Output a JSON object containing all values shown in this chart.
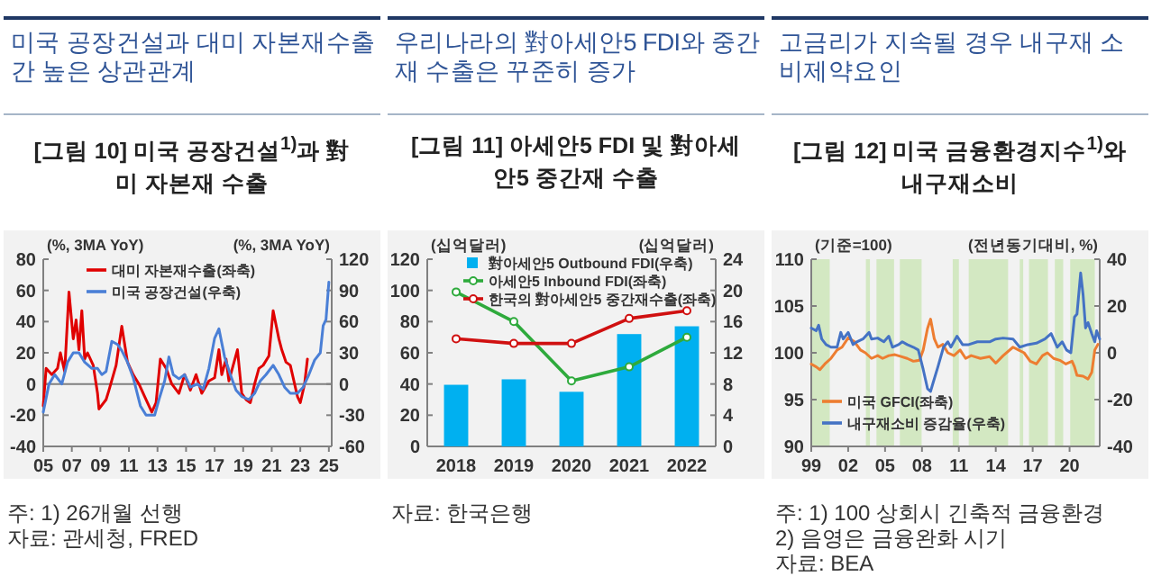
{
  "chart_data": [
    {
      "type": "line",
      "title": "미국 공장건설과 대미 자본재수출간 높은 상관관계",
      "subtitle": "[그림 10] 미국 공장건설$^{1)}$과 對미 자본재 수출",
      "ylabel": "(%, 3MA YoY)",
      "y2label": "(%, 3MA YoY)",
      "xlim": [
        2005,
        2025.2
      ],
      "xticks": [
        {
          "value": 2005,
          "label": "05"
        },
        {
          "value": 2007,
          "label": "07"
        },
        {
          "value": 2009,
          "label": "09"
        },
        {
          "value": 2011,
          "label": "11"
        },
        {
          "value": 2013,
          "label": "13"
        },
        {
          "value": 2015,
          "label": "15"
        },
        {
          "value": 2017,
          "label": "17"
        },
        {
          "value": 2019,
          "label": "19"
        },
        {
          "value": 2021,
          "label": "21"
        },
        {
          "value": 2023,
          "label": "23"
        },
        {
          "value": 2025,
          "label": "25"
        }
      ],
      "ylim": [
        -40,
        80
      ],
      "yticks": [
        -40,
        -20,
        0,
        20,
        40,
        60,
        80
      ],
      "y2lim": [
        -60,
        120
      ],
      "y2ticks": [
        -60,
        -30,
        0,
        30,
        60,
        90,
        120
      ],
      "ref_lines": [
        {
          "axis": "y",
          "value": 0,
          "color": "#7f7f7f"
        }
      ],
      "legend": "top left",
      "annotations": [
        "주: 1) 26개월 선행",
        "자료: 관세청, FRED"
      ],
      "series": [
        {
          "name": "대미 자본재수출(좌축)",
          "color": "#e00000",
          "x": [
            2005.0,
            2005.2,
            2005.6,
            2006.0,
            2006.2,
            2006.5,
            2006.8,
            2007.1,
            2007.3,
            2007.5,
            2007.7,
            2007.9,
            2008.1,
            2008.5,
            2008.8,
            2008.9,
            2009.4,
            2009.6,
            2010.1,
            2010.5,
            2010.9,
            2011.3,
            2011.7,
            2012.1,
            2012.6,
            2012.9,
            2013.2,
            2013.6,
            2014.0,
            2014.5,
            2014.9,
            2015.3,
            2015.7,
            2016.1,
            2016.6,
            2017.0,
            2017.3,
            2017.5,
            2017.8,
            2018.0,
            2018.3,
            2018.6,
            2018.9,
            2019.2,
            2019.5,
            2019.8,
            2020.1,
            2020.4,
            2020.8,
            2021.1,
            2021.5,
            2021.7,
            2022.0,
            2022.3,
            2022.8,
            2023.0,
            2023.3,
            2023.5
          ],
          "values": [
            -14,
            10,
            6,
            10,
            20,
            8,
            59,
            29,
            41,
            22,
            47,
            16,
            20,
            12,
            -6,
            -16,
            -10,
            -4,
            12,
            37,
            14,
            6,
            0,
            -8,
            -18,
            -12,
            16,
            10,
            0,
            -6,
            6,
            -4,
            6,
            -6,
            2,
            4,
            22,
            6,
            16,
            2,
            12,
            22,
            -6,
            -10,
            -12,
            0,
            10,
            12,
            18,
            47,
            29,
            22,
            14,
            12,
            -8,
            -12,
            0,
            16
          ]
        },
        {
          "name": "미국 공장건설(우축)",
          "color": "#4a7fd6",
          "axis": "y2",
          "x": [
            2005.0,
            2005.4,
            2005.8,
            2006.3,
            2006.7,
            2007.1,
            2007.5,
            2007.9,
            2008.4,
            2008.8,
            2009.1,
            2009.4,
            2009.8,
            2010.2,
            2010.5,
            2010.9,
            2011.3,
            2011.8,
            2012.2,
            2012.8,
            2013.1,
            2013.5,
            2013.8,
            2014.1,
            2014.5,
            2014.9,
            2015.3,
            2015.8,
            2016.2,
            2016.6,
            2017.0,
            2017.3,
            2017.7,
            2018.1,
            2018.5,
            2018.9,
            2019.4,
            2019.8,
            2020.2,
            2020.6,
            2021.1,
            2021.5,
            2021.9,
            2022.3,
            2022.8,
            2023.2,
            2023.6,
            2024.0,
            2024.4,
            2024.6,
            2024.8,
            2025.0
          ],
          "values": [
            -27,
            0,
            9,
            0,
            21,
            30,
            30,
            21,
            15,
            15,
            9,
            12,
            41,
            38,
            32,
            21,
            6,
            -21,
            -30,
            -30,
            -15,
            3,
            26,
            9,
            5,
            9,
            -3,
            0,
            -5,
            15,
            44,
            53,
            26,
            9,
            -6,
            -12,
            -15,
            -9,
            3,
            9,
            18,
            9,
            -3,
            -9,
            -9,
            -3,
            9,
            23,
            30,
            56,
            62,
            98
          ]
        }
      ]
    },
    {
      "type": "bar",
      "title": "우리나라의 對아세안5 FDI와 중간재 수출은 꾸준히 증가",
      "subtitle": "[그림 11] 아세안5 FDI 및 對아세안5 중간재 수출",
      "ylabel": "(십억달러)",
      "y2label": "(십억달러)",
      "categories": [
        "2018",
        "2019",
        "2020",
        "2021",
        "2022"
      ],
      "ylim": [
        0,
        120
      ],
      "yticks": [
        0,
        20,
        40,
        60,
        80,
        100,
        120
      ],
      "y2lim": [
        0,
        24
      ],
      "y2ticks": [
        0,
        4,
        8,
        12,
        16,
        20,
        24
      ],
      "legend": "top right",
      "annotations": [
        "자료: 한국은행"
      ],
      "series": [
        {
          "name": "對아세안5 Outbound FDI(우축)",
          "axis": "y2",
          "color": "#00b0f0",
          "values": [
            7.9,
            8.6,
            7.0,
            14.4,
            15.4
          ]
        },
        {
          "name": "아세안5 Inbound FDI(좌축)",
          "type": "line",
          "marker": "circle",
          "color": "#2eaa3c",
          "values": [
            99,
            80,
            42,
            51,
            70
          ]
        },
        {
          "name": "한국의 對아세안5 중간재수출(좌축)",
          "type": "line",
          "marker": "circle",
          "color": "#d01010",
          "values": [
            69,
            66,
            66,
            82,
            87
          ]
        }
      ]
    },
    {
      "type": "line",
      "title": "고금리가 지속될 경우 내구재 소비제약요인",
      "subtitle": "[그림 12] 미국 금융환경지수$^{1)}$와 내구재소비",
      "ylabel": "(기준=100)",
      "y2label": "(전년동기대비, %)",
      "xlim": [
        1999,
        2022.45
      ],
      "xticks": [
        {
          "value": 1999,
          "label": "99"
        },
        {
          "value": 2002,
          "label": "02"
        },
        {
          "value": 2005,
          "label": "05"
        },
        {
          "value": 2008,
          "label": "08"
        },
        {
          "value": 2011,
          "label": "11"
        },
        {
          "value": 2014,
          "label": "14"
        },
        {
          "value": 2017,
          "label": "17"
        },
        {
          "value": 2020,
          "label": "20"
        }
      ],
      "ylim": [
        90,
        110
      ],
      "yticks": [
        90,
        95,
        100,
        105,
        110
      ],
      "y2lim": [
        -40,
        40
      ],
      "y2ticks": [
        -40,
        -20,
        0,
        20,
        40
      ],
      "legend": "bottom left",
      "bands": [
        {
          "axis": "x",
          "from": 1999.0,
          "to": 2000.5,
          "color": "#d3e8c2"
        },
        {
          "axis": "x",
          "from": 2003.44,
          "to": 2003.77,
          "color": "#d3e8c2"
        },
        {
          "axis": "x",
          "from": 2004.3,
          "to": 2005.73,
          "color": "#d3e8c2"
        },
        {
          "axis": "x",
          "from": 2006.2,
          "to": 2007.97,
          "color": "#d3e8c2"
        },
        {
          "axis": "x",
          "from": 2010.5,
          "to": 2011.0,
          "color": "#d3e8c2"
        },
        {
          "axis": "x",
          "from": 2011.8,
          "to": 2015.0,
          "color": "#d3e8c2"
        },
        {
          "axis": "x",
          "from": 2015.95,
          "to": 2016.23,
          "color": "#d3e8c2"
        },
        {
          "axis": "x",
          "from": 2016.7,
          "to": 2018.24,
          "color": "#d3e8c2"
        },
        {
          "axis": "x",
          "from": 2018.8,
          "to": 2019.48,
          "color": "#d3e8c2"
        },
        {
          "axis": "x",
          "from": 2020.05,
          "to": 2022.05,
          "color": "#d3e8c2"
        }
      ],
      "annotations": [
        "주: 1) 100 상회시 긴축적 금융환경",
        "2) 음영은 금융완화 시기",
        "자료: BEA"
      ],
      "series": [
        {
          "name": "미국 GFCI(좌축)",
          "color": "#ed7d31",
          "x": [
            1999.0,
            1999.4,
            1999.7,
            2000.1,
            2000.6,
            2001.1,
            2001.5,
            2002.0,
            2002.5,
            2003.0,
            2003.4,
            2003.9,
            2004.4,
            2004.8,
            2005.3,
            2005.8,
            2006.3,
            2006.8,
            2007.3,
            2007.8,
            2008.1,
            2008.45,
            2008.7,
            2009.0,
            2009.3,
            2009.7,
            2010.1,
            2010.6,
            2011.1,
            2011.55,
            2012.0,
            2012.75,
            2013.5,
            2014.0,
            2014.6,
            2015.4,
            2015.85,
            2016.3,
            2016.8,
            2017.3,
            2017.8,
            2018.2,
            2018.7,
            2019.2,
            2019.7,
            2020.2,
            2020.4,
            2020.6,
            2021.1,
            2021.5,
            2021.8,
            2022.05,
            2022.3
          ],
          "values": [
            98.8,
            98.5,
            98.2,
            98.8,
            99.4,
            100.3,
            100.6,
            101.6,
            101.2,
            100.3,
            100.0,
            99.4,
            99.7,
            99.4,
            99.7,
            99.8,
            99.6,
            99.4,
            99.1,
            99.2,
            100.3,
            102.6,
            103.6,
            101.5,
            100.6,
            100.9,
            100.0,
            99.7,
            100.3,
            99.4,
            99.7,
            99.4,
            99.6,
            98.9,
            99.7,
            100.6,
            100.3,
            100.0,
            99.1,
            98.8,
            99.7,
            100.0,
            99.4,
            99.2,
            98.8,
            99.1,
            98.5,
            97.6,
            97.5,
            97.2,
            97.9,
            100.3,
            100.9
          ]
        },
        {
          "name": "내구재소비 증감율(우축)",
          "color": "#4472c4",
          "axis": "y2",
          "x": [
            1999.0,
            1999.4,
            1999.6,
            1999.85,
            2000.2,
            2000.6,
            2001.1,
            2001.4,
            2001.6,
            2002.0,
            2002.4,
            2002.7,
            2003.2,
            2003.7,
            2003.9,
            2004.4,
            2004.9,
            2005.3,
            2005.6,
            2006.1,
            2006.4,
            2006.8,
            2007.3,
            2007.7,
            2008.1,
            2008.45,
            2008.7,
            2008.9,
            2009.3,
            2009.75,
            2010.1,
            2010.35,
            2010.85,
            2011.3,
            2011.8,
            2012.5,
            2013.5,
            2014.0,
            2014.6,
            2015.4,
            2015.95,
            2016.6,
            2017.3,
            2018.0,
            2018.5,
            2019.0,
            2019.4,
            2019.75,
            2020.1,
            2020.4,
            2020.6,
            2020.9,
            2021.1,
            2021.3,
            2021.5,
            2021.8,
            2022.05,
            2022.2,
            2022.45
          ],
          "values": [
            10.6,
            9.4,
            11.8,
            5.9,
            3.5,
            2.4,
            2.4,
            8.7,
            5.9,
            8.7,
            3.5,
            4.7,
            5.9,
            8.7,
            5.9,
            6.3,
            4.7,
            7.1,
            2.4,
            3.5,
            4.7,
            3.5,
            2.4,
            1.2,
            -7.1,
            -15.3,
            -16.5,
            -12.9,
            -5.9,
            2.4,
            4.7,
            2.4,
            7.1,
            3.5,
            3.5,
            4.7,
            4.7,
            5.9,
            6.3,
            5.9,
            2.4,
            3.5,
            4.1,
            5.9,
            8.2,
            2.4,
            4.7,
            1.2,
            0,
            15.3,
            16.5,
            34.1,
            24.7,
            10.6,
            12.9,
            8.2,
            4.7,
            9.4,
            5.9
          ]
        }
      ]
    }
  ]
}
